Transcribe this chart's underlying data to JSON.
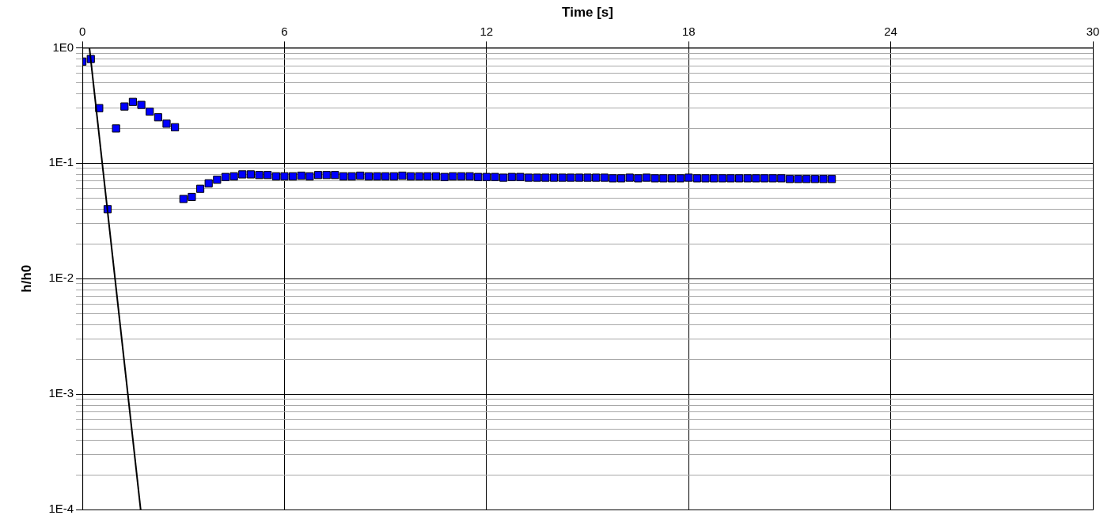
{
  "chart_data": {
    "type": "scatter",
    "xlabel": "Time [s]",
    "ylabel": "h/h0",
    "log": "y",
    "grid": true,
    "legend": false,
    "xlim": [
      0,
      30
    ],
    "xticks": [
      0,
      6,
      12,
      18,
      24,
      30
    ],
    "ylim": [
      0.0001,
      1
    ],
    "yticks": [
      {
        "value": 0.0001,
        "label": "1E-4"
      },
      {
        "value": 0.0002,
        "label": null
      },
      {
        "value": 0.0003,
        "label": null
      },
      {
        "value": 0.0004,
        "label": null
      },
      {
        "value": 0.0005,
        "label": null
      },
      {
        "value": 0.0006,
        "label": null
      },
      {
        "value": 0.0007,
        "label": null
      },
      {
        "value": 0.0008,
        "label": null
      },
      {
        "value": 0.0009,
        "label": null
      },
      {
        "value": 0.001,
        "label": "1E-3"
      },
      {
        "value": 0.002,
        "label": null
      },
      {
        "value": 0.003,
        "label": null
      },
      {
        "value": 0.004,
        "label": null
      },
      {
        "value": 0.005,
        "label": null
      },
      {
        "value": 0.006,
        "label": null
      },
      {
        "value": 0.007,
        "label": null
      },
      {
        "value": 0.008,
        "label": null
      },
      {
        "value": 0.009,
        "label": null
      },
      {
        "value": 0.01,
        "label": "1E-2"
      },
      {
        "value": 0.02,
        "label": null
      },
      {
        "value": 0.03,
        "label": null
      },
      {
        "value": 0.04,
        "label": null
      },
      {
        "value": 0.05,
        "label": null
      },
      {
        "value": 0.06,
        "label": null
      },
      {
        "value": 0.07,
        "label": null
      },
      {
        "value": 0.08,
        "label": null
      },
      {
        "value": 0.09,
        "label": null
      },
      {
        "value": 0.1,
        "label": "1E-1"
      },
      {
        "value": 0.2,
        "label": null
      },
      {
        "value": 0.3,
        "label": null
      },
      {
        "value": 0.4,
        "label": null
      },
      {
        "value": 0.5,
        "label": null
      },
      {
        "value": 0.6,
        "label": null
      },
      {
        "value": 0.7,
        "label": null
      },
      {
        "value": 0.8,
        "label": null
      },
      {
        "value": 0.9,
        "label": null
      },
      {
        "value": 1,
        "label": "1E0"
      }
    ],
    "series": [
      {
        "type": "scatter",
        "color": "#0000ff",
        "marker": "square",
        "x": [
          0,
          0.25,
          0.5,
          0.75,
          1,
          1.25,
          1.5,
          1.75,
          2,
          2.25,
          2.5,
          2.75,
          3,
          3.25,
          3.5,
          3.75,
          4,
          4.25,
          4.5,
          4.75,
          5,
          5.25,
          5.5,
          5.75,
          6,
          6.25,
          6.5,
          6.75,
          7,
          7.25,
          7.5,
          7.75,
          8,
          8.25,
          8.5,
          8.75,
          9,
          9.25,
          9.5,
          9.75,
          10,
          10.25,
          10.5,
          10.75,
          11,
          11.25,
          11.5,
          11.75,
          12,
          12.25,
          12.5,
          12.75,
          13,
          13.25,
          13.5,
          13.75,
          14,
          14.25,
          14.5,
          14.75,
          15,
          15.25,
          15.5,
          15.75,
          16,
          16.25,
          16.5,
          16.75,
          17,
          17.25,
          17.5,
          17.75,
          18,
          18.25,
          18.5,
          18.75,
          19,
          19.25,
          19.5,
          19.75,
          20,
          20.25,
          20.5,
          20.75,
          21,
          21.25,
          21.5,
          21.75,
          22,
          22.25
        ],
        "values": [
          0.76,
          0.8,
          0.3,
          0.04,
          0.2,
          0.31,
          0.34,
          0.32,
          0.28,
          0.25,
          0.22,
          0.205,
          0.049,
          0.051,
          0.06,
          0.067,
          0.072,
          0.076,
          0.077,
          0.08,
          0.08,
          0.079,
          0.079,
          0.077,
          0.077,
          0.077,
          0.078,
          0.077,
          0.079,
          0.079,
          0.079,
          0.077,
          0.077,
          0.078,
          0.077,
          0.077,
          0.077,
          0.077,
          0.078,
          0.077,
          0.077,
          0.077,
          0.077,
          0.076,
          0.077,
          0.077,
          0.077,
          0.076,
          0.076,
          0.076,
          0.075,
          0.076,
          0.076,
          0.075,
          0.075,
          0.075,
          0.075,
          0.075,
          0.075,
          0.075,
          0.075,
          0.075,
          0.075,
          0.074,
          0.074,
          0.075,
          0.074,
          0.075,
          0.074,
          0.074,
          0.074,
          0.074,
          0.075,
          0.074,
          0.074,
          0.074,
          0.074,
          0.074,
          0.074,
          0.074,
          0.074,
          0.074,
          0.074,
          0.074,
          0.073,
          0.073,
          0.073,
          0.073,
          0.073,
          0.073
        ]
      },
      {
        "type": "line",
        "color": "#000000",
        "marker": "none",
        "line_style": "solid",
        "x": [
          0.21,
          1.73
        ],
        "values": [
          1,
          0.0001
        ]
      }
    ]
  }
}
